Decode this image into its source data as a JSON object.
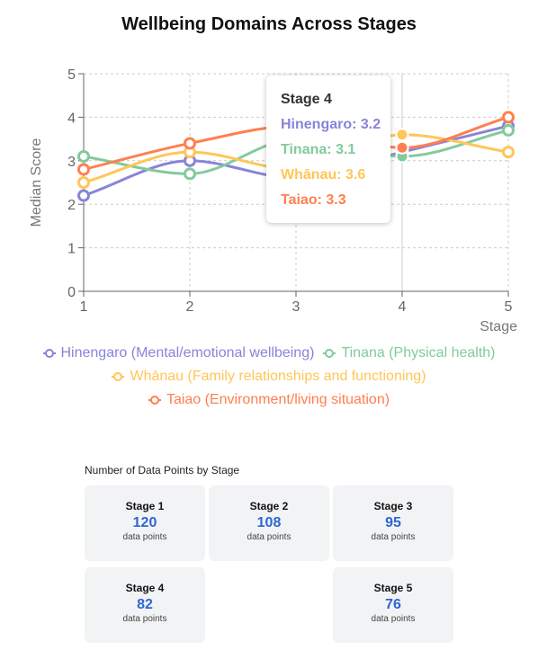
{
  "chart_data": {
    "type": "line",
    "title": "Wellbeing Domains Across Stages",
    "xlabel": "Stage",
    "ylabel": "Median Score",
    "x": [
      1,
      2,
      3,
      4,
      5
    ],
    "ylim": [
      0,
      5
    ],
    "yticks": [
      "0",
      "1",
      "2",
      "3",
      "4",
      "5"
    ],
    "xticks": [
      "1",
      "2",
      "3",
      "4",
      "5"
    ],
    "grid": true,
    "legend_position": "bottom",
    "series": [
      {
        "name": "Hinengaro (Mental/emotional wellbeing)",
        "short": "Hinengaro",
        "color": "#8884d8",
        "values": [
          2.2,
          3.0,
          2.6,
          3.2,
          3.8
        ]
      },
      {
        "name": "Tinana (Physical health)",
        "short": "Tinana",
        "color": "#82ca9d",
        "values": [
          3.1,
          2.7,
          3.5,
          3.1,
          3.7
        ]
      },
      {
        "name": "Whānau (Family relationships and functioning)",
        "short": "Whānau",
        "color": "#ffc658",
        "values": [
          2.5,
          3.2,
          2.8,
          3.6,
          3.2
        ]
      },
      {
        "name": "Taiao (Environment/living situation)",
        "short": "Taiao",
        "color": "#ff7f50",
        "values": [
          2.8,
          3.4,
          3.8,
          3.3,
          4.0
        ]
      }
    ],
    "tooltip": {
      "title": "Stage 4",
      "rows": [
        {
          "label": "Hinengaro",
          "value": "3.2",
          "color": "#8884d8"
        },
        {
          "label": "Tinana",
          "value": "3.1",
          "color": "#82ca9d"
        },
        {
          "label": "Whānau",
          "value": "3.6",
          "color": "#ffc658"
        },
        {
          "label": "Taiao",
          "value": "3.3",
          "color": "#ff7f50"
        }
      ]
    }
  },
  "data_points": {
    "title": "Number of Data Points by Stage",
    "unit": "data points",
    "cards": [
      {
        "stage": "Stage 1",
        "count": "120"
      },
      {
        "stage": "Stage 2",
        "count": "108"
      },
      {
        "stage": "Stage 3",
        "count": "95"
      },
      {
        "stage": "Stage 4",
        "count": "82"
      },
      {
        "stage": "Stage 5",
        "count": "76"
      }
    ]
  }
}
